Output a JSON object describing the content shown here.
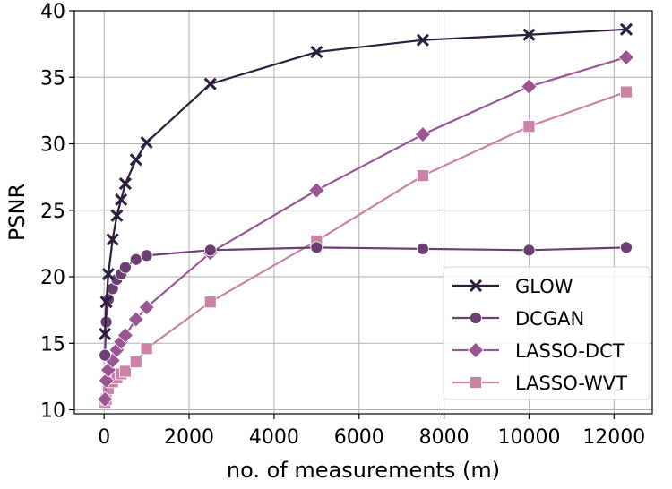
{
  "chart_data": {
    "type": "line",
    "xlabel": "no. of measurements (m)",
    "ylabel": "PSNR",
    "xlim": [
      -700,
      12900
    ],
    "ylim": [
      9.7,
      40
    ],
    "x_ticks": [
      0,
      2000,
      4000,
      6000,
      8000,
      10000,
      12000
    ],
    "x_tick_labels": [
      "0",
      "2000",
      "4000",
      "6000",
      "8000",
      "10000",
      "12000"
    ],
    "y_ticks": [
      10,
      15,
      20,
      25,
      30,
      35,
      40
    ],
    "y_tick_labels": [
      "10",
      "15",
      "20",
      "25",
      "30",
      "35",
      "40"
    ],
    "grid": true,
    "legend_position": "lower-right",
    "series": [
      {
        "name": "GLOW",
        "color": "#2d1e3e",
        "marker": "x",
        "points": [
          [
            20,
            15.7
          ],
          [
            50,
            18.1
          ],
          [
            100,
            20.2
          ],
          [
            200,
            22.8
          ],
          [
            300,
            24.6
          ],
          [
            400,
            25.8
          ],
          [
            500,
            27.0
          ],
          [
            750,
            28.8
          ],
          [
            1000,
            30.1
          ],
          [
            2500,
            34.5
          ],
          [
            5000,
            36.9
          ],
          [
            7500,
            37.8
          ],
          [
            10000,
            38.2
          ],
          [
            12288,
            38.6
          ]
        ]
      },
      {
        "name": "DCGAN",
        "color": "#6b3f72",
        "marker": "circle",
        "points": [
          [
            20,
            14.1
          ],
          [
            50,
            16.6
          ],
          [
            100,
            18.3
          ],
          [
            200,
            19.1
          ],
          [
            300,
            19.8
          ],
          [
            400,
            20.2
          ],
          [
            500,
            20.7
          ],
          [
            750,
            21.3
          ],
          [
            1000,
            21.6
          ],
          [
            2500,
            22.0
          ],
          [
            5000,
            22.2
          ],
          [
            7500,
            22.1
          ],
          [
            10000,
            22.0
          ],
          [
            12288,
            22.2
          ]
        ]
      },
      {
        "name": "LASSO-DCT",
        "color": "#9a5693",
        "marker": "diamond",
        "points": [
          [
            20,
            10.8
          ],
          [
            50,
            12.2
          ],
          [
            100,
            13.0
          ],
          [
            200,
            13.7
          ],
          [
            300,
            14.5
          ],
          [
            400,
            15.1
          ],
          [
            500,
            15.6
          ],
          [
            750,
            16.8
          ],
          [
            1000,
            17.7
          ],
          [
            2500,
            21.8
          ],
          [
            5000,
            26.5
          ],
          [
            7500,
            30.7
          ],
          [
            10000,
            34.3
          ],
          [
            12288,
            36.5
          ]
        ]
      },
      {
        "name": "LASSO-WVT",
        "color": "#cc82a5",
        "marker": "square",
        "points": [
          [
            20,
            10.5
          ],
          [
            50,
            10.8
          ],
          [
            100,
            11.6
          ],
          [
            200,
            12.1
          ],
          [
            300,
            12.4
          ],
          [
            400,
            12.7
          ],
          [
            500,
            12.9
          ],
          [
            750,
            13.6
          ],
          [
            1000,
            14.6
          ],
          [
            2500,
            18.1
          ],
          [
            5000,
            22.7
          ],
          [
            7500,
            27.6
          ],
          [
            10000,
            31.3
          ],
          [
            12288,
            33.9
          ]
        ]
      }
    ]
  }
}
